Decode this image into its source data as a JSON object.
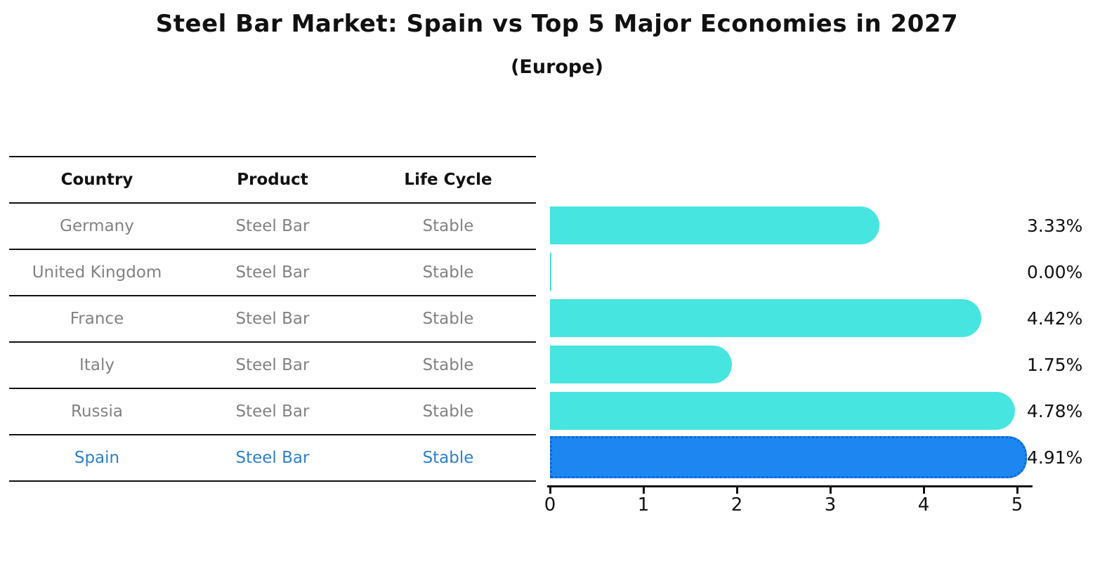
{
  "title": "Steel Bar Market: Spain vs Top 5 Major Economies in 2027",
  "subtitle": "(Europe)",
  "table": {
    "headers": [
      "Country",
      "Product",
      "Life Cycle"
    ],
    "rows": [
      {
        "country": "Germany",
        "product": "Steel Bar",
        "life_cycle": "Stable"
      },
      {
        "country": "United Kingdom",
        "product": "Steel Bar",
        "life_cycle": "Stable"
      },
      {
        "country": "France",
        "product": "Steel Bar",
        "life_cycle": "Stable"
      },
      {
        "country": "Italy",
        "product": "Steel Bar",
        "life_cycle": "Stable"
      },
      {
        "country": "Russia",
        "product": "Steel Bar",
        "life_cycle": "Stable"
      },
      {
        "country": "Spain",
        "product": "Steel Bar",
        "life_cycle": "Stable"
      }
    ]
  },
  "chart_data": {
    "type": "bar",
    "orientation": "horizontal",
    "categories": [
      "Germany",
      "United Kingdom",
      "France",
      "Italy",
      "Russia",
      "Spain"
    ],
    "values": [
      3.33,
      0.0,
      4.42,
      1.75,
      4.78,
      4.91
    ],
    "value_labels": [
      "3.33%",
      "0.00%",
      "4.42%",
      "1.75%",
      "4.78%",
      "4.91%"
    ],
    "x_ticks": [
      "0",
      "1",
      "2",
      "3",
      "4",
      "5"
    ],
    "xlim": [
      0,
      5.17
    ],
    "grid": false,
    "legend": false,
    "highlight_category": "Spain",
    "highlight_index": 5,
    "colors": {
      "bar": "#47e5e0",
      "highlight_bar": "#1e86f0",
      "highlight_border": "#0e66d8",
      "muted_text": "#828282",
      "highlight_text": "#2e7fcc",
      "axis": "#111111"
    }
  }
}
